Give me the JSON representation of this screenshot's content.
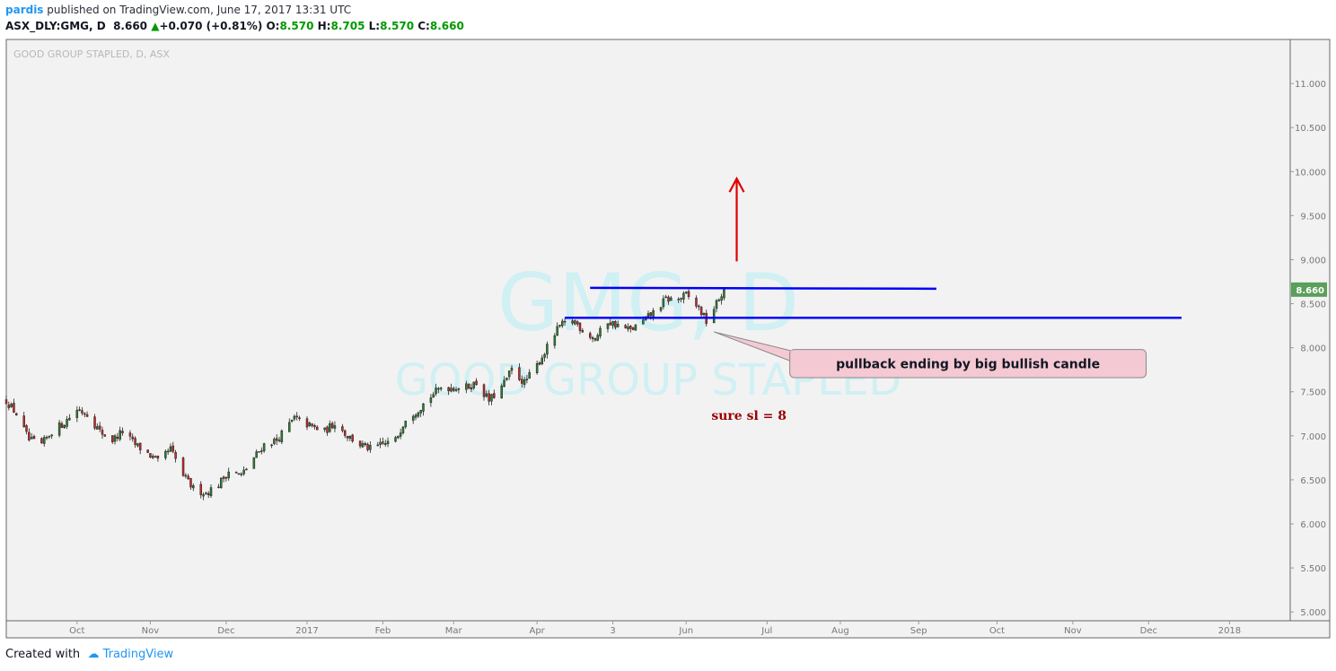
{
  "header": {
    "user": "pardis",
    "published": "published on TradingView.com, June 17, 2017 13:31 UTC",
    "symbol": "ASX_DLY:GMG, D",
    "last": "8.660",
    "change": "+0.070 (+0.81%)",
    "open_label": "O:",
    "open": "8.570",
    "high_label": "H:",
    "high": "8.705",
    "low_label": "L:",
    "low": "8.570",
    "close_label": "C:",
    "close": "8.660"
  },
  "footer": {
    "created_with": "Created with",
    "brand": "TradingView"
  },
  "colors": {
    "up": "#2e7d32",
    "down": "#c62828",
    "level_line": "#0000ff",
    "arrow": "#e00000",
    "sl_text": "#990000",
    "callout_bg": "#f4c9d3",
    "price_badge": "#5a9f5a"
  },
  "chart_data": {
    "type": "candlestick",
    "title": "GOOD GROUP STAPLED, D, ASX",
    "watermark_symbol": "GMG, D",
    "watermark_name": "GOOD GROUP STAPLED",
    "ylim": [
      4.9,
      11.5
    ],
    "y_ticks": [
      "11.000",
      "10.500",
      "10.000",
      "9.500",
      "9.000",
      "8.500",
      "8.000",
      "7.500",
      "7.000",
      "6.500",
      "6.000",
      "5.500",
      "5.000"
    ],
    "y_tick_values": [
      11.0,
      10.5,
      10.0,
      9.5,
      9.0,
      8.5,
      8.0,
      7.5,
      7.0,
      6.5,
      6.0,
      5.5,
      5.0
    ],
    "x_start": "2016-09-05",
    "x_end": "2018-01-26",
    "x_ticks": [
      {
        "label": "Oct",
        "date": "2016-10-03"
      },
      {
        "label": "Nov",
        "date": "2016-11-01"
      },
      {
        "label": "Dec",
        "date": "2016-12-01"
      },
      {
        "label": "2017",
        "date": "2017-01-02"
      },
      {
        "label": "Feb",
        "date": "2017-02-01"
      },
      {
        "label": "Mar",
        "date": "2017-03-01"
      },
      {
        "label": "Apr",
        "date": "2017-04-03"
      },
      {
        "label": "3",
        "date": "2017-05-03"
      },
      {
        "label": "Jun",
        "date": "2017-06-01"
      },
      {
        "label": "Jul",
        "date": "2017-07-03"
      },
      {
        "label": "Aug",
        "date": "2017-08-01"
      },
      {
        "label": "Sep",
        "date": "2017-09-01"
      },
      {
        "label": "Oct",
        "date": "2017-10-02"
      },
      {
        "label": "Nov",
        "date": "2017-11-01"
      },
      {
        "label": "Dec",
        "date": "2017-12-01"
      },
      {
        "label": "2018",
        "date": "2018-01-02"
      }
    ],
    "close_path": [
      [
        "2016-09-05",
        7.4
      ],
      [
        "2016-09-09",
        7.25
      ],
      [
        "2016-09-14",
        6.95
      ],
      [
        "2016-09-19",
        6.9
      ],
      [
        "2016-09-23",
        7.05
      ],
      [
        "2016-09-28",
        7.15
      ],
      [
        "2016-10-03",
        7.3
      ],
      [
        "2016-10-07",
        7.25
      ],
      [
        "2016-10-12",
        7.05
      ],
      [
        "2016-10-17",
        6.95
      ],
      [
        "2016-10-21",
        7.05
      ],
      [
        "2016-10-26",
        6.9
      ],
      [
        "2016-10-31",
        6.8
      ],
      [
        "2016-11-04",
        6.7
      ],
      [
        "2016-11-09",
        6.85
      ],
      [
        "2016-11-14",
        6.55
      ],
      [
        "2016-11-18",
        6.4
      ],
      [
        "2016-11-23",
        6.35
      ],
      [
        "2016-11-28",
        6.45
      ],
      [
        "2016-12-02",
        6.6
      ],
      [
        "2016-12-07",
        6.55
      ],
      [
        "2016-12-12",
        6.75
      ],
      [
        "2016-12-16",
        6.9
      ],
      [
        "2016-12-21",
        6.95
      ],
      [
        "2016-12-28",
        7.2
      ],
      [
        "2017-01-04",
        7.1
      ],
      [
        "2017-01-09",
        7.05
      ],
      [
        "2017-01-13",
        7.15
      ],
      [
        "2017-01-18",
        7.0
      ],
      [
        "2017-01-23",
        6.9
      ],
      [
        "2017-01-27",
        6.85
      ],
      [
        "2017-02-01",
        6.9
      ],
      [
        "2017-02-06",
        6.95
      ],
      [
        "2017-02-10",
        7.2
      ],
      [
        "2017-02-15",
        7.3
      ],
      [
        "2017-02-20",
        7.45
      ],
      [
        "2017-02-24",
        7.55
      ],
      [
        "2017-03-01",
        7.55
      ],
      [
        "2017-03-06",
        7.55
      ],
      [
        "2017-03-10",
        7.6
      ],
      [
        "2017-03-15",
        7.4
      ],
      [
        "2017-03-20",
        7.55
      ],
      [
        "2017-03-24",
        7.75
      ],
      [
        "2017-03-29",
        7.6
      ],
      [
        "2017-04-03",
        7.8
      ],
      [
        "2017-04-07",
        8.0
      ],
      [
        "2017-04-12",
        8.25
      ],
      [
        "2017-04-18",
        8.3
      ],
      [
        "2017-04-21",
        8.2
      ],
      [
        "2017-04-26",
        8.1
      ],
      [
        "2017-05-01",
        8.3
      ],
      [
        "2017-05-05",
        8.25
      ],
      [
        "2017-05-10",
        8.2
      ],
      [
        "2017-05-15",
        8.3
      ],
      [
        "2017-05-19",
        8.4
      ],
      [
        "2017-05-24",
        8.55
      ],
      [
        "2017-05-29",
        8.55
      ],
      [
        "2017-06-01",
        8.6
      ],
      [
        "2017-06-06",
        8.45
      ],
      [
        "2017-06-09",
        8.3
      ],
      [
        "2017-06-13",
        8.5
      ],
      [
        "2017-06-16",
        8.66
      ]
    ],
    "series": [
      {
        "name": "resistance_line",
        "from": [
          "2017-04-24",
          8.68
        ],
        "to": [
          "2017-09-08",
          8.67
        ]
      },
      {
        "name": "support_line",
        "from": [
          "2017-04-14",
          8.34
        ],
        "to": [
          "2017-12-14",
          8.34
        ]
      }
    ],
    "annotations": [
      {
        "type": "arrow_up",
        "x": "2017-06-21",
        "y_from": 8.98,
        "y_to": 9.92
      },
      {
        "type": "callout",
        "text": "pullback ending by big bullish candle",
        "anchor": [
          "2017-06-12",
          8.18
        ],
        "box_left": "2017-07-12",
        "box_right": "2017-11-30",
        "box_top": 7.98,
        "box_bottom": 7.66
      },
      {
        "type": "text",
        "text": "sure sl = 8",
        "x": "2017-06-11",
        "y": 7.18
      }
    ],
    "last_price_label": "8.660",
    "last_price": 8.66,
    "grid": false,
    "legend": "none"
  }
}
